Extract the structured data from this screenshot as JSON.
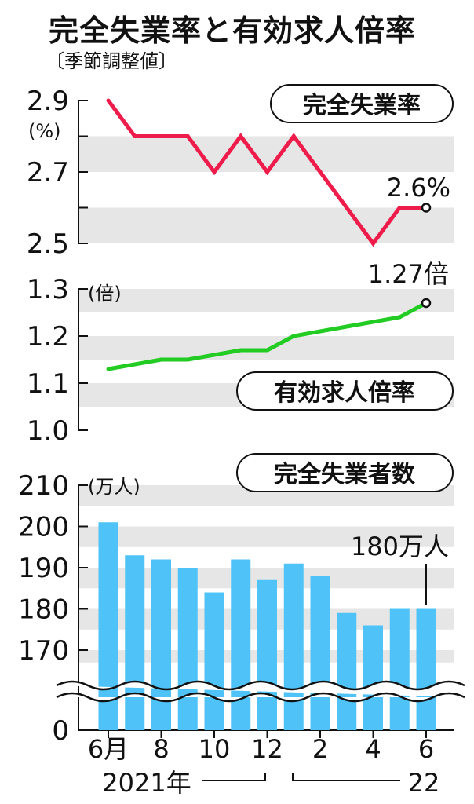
{
  "header": {
    "title": "完全失業率と有効求人倍率",
    "subtitle": "〔季節調整値〕"
  },
  "chart_data": [
    {
      "type": "line",
      "title": "完全失業率",
      "unit": "(%)",
      "ylim": [
        2.5,
        2.9
      ],
      "yticks": [
        "2.9",
        "2.7",
        "2.5"
      ],
      "grid": "alternating bands",
      "color": "#ee1c4b",
      "x": [
        "2021-06",
        "2021-07",
        "2021-08",
        "2021-09",
        "2021-10",
        "2021-11",
        "2021-12",
        "2022-01",
        "2022-02",
        "2022-03",
        "2022-04",
        "2022-05",
        "2022-06"
      ],
      "values": [
        2.9,
        2.8,
        2.8,
        2.8,
        2.7,
        2.8,
        2.7,
        2.8,
        2.7,
        2.6,
        2.5,
        2.6,
        2.6
      ],
      "end_label": "2.6%"
    },
    {
      "type": "line",
      "title": "有効求人倍率",
      "unit": "(倍)",
      "ylim": [
        1.0,
        1.3
      ],
      "yticks": [
        "1.3",
        "1.2",
        "1.1",
        "1.0"
      ],
      "grid": "alternating bands",
      "color": "#22cc22",
      "x": [
        "2021-06",
        "2021-07",
        "2021-08",
        "2021-09",
        "2021-10",
        "2021-11",
        "2021-12",
        "2022-01",
        "2022-02",
        "2022-03",
        "2022-04",
        "2022-05",
        "2022-06"
      ],
      "values": [
        1.13,
        1.14,
        1.15,
        1.15,
        1.16,
        1.17,
        1.17,
        1.2,
        1.21,
        1.22,
        1.23,
        1.24,
        1.27
      ],
      "end_label": "1.27倍"
    },
    {
      "type": "bar",
      "title": "完全失業者数",
      "unit": "(万人)",
      "ylim": [
        170,
        210
      ],
      "axis_break": true,
      "yticks": [
        "210",
        "200",
        "190",
        "180",
        "170",
        "0"
      ],
      "grid": "alternating bands",
      "color": "#4fc3f7",
      "categories": [
        "2021-06",
        "2021-07",
        "2021-08",
        "2021-09",
        "2021-10",
        "2021-11",
        "2021-12",
        "2022-01",
        "2022-02",
        "2022-03",
        "2022-04",
        "2022-05",
        "2022-06"
      ],
      "values": [
        201,
        193,
        192,
        190,
        184,
        192,
        187,
        191,
        188,
        179,
        176,
        180,
        180
      ],
      "end_label": "180万人"
    }
  ],
  "x_axis": {
    "tick_labels": [
      "6月",
      "8",
      "10",
      "12",
      "2",
      "4",
      "6"
    ],
    "year_2021": "2021年",
    "year_2022": "22"
  }
}
